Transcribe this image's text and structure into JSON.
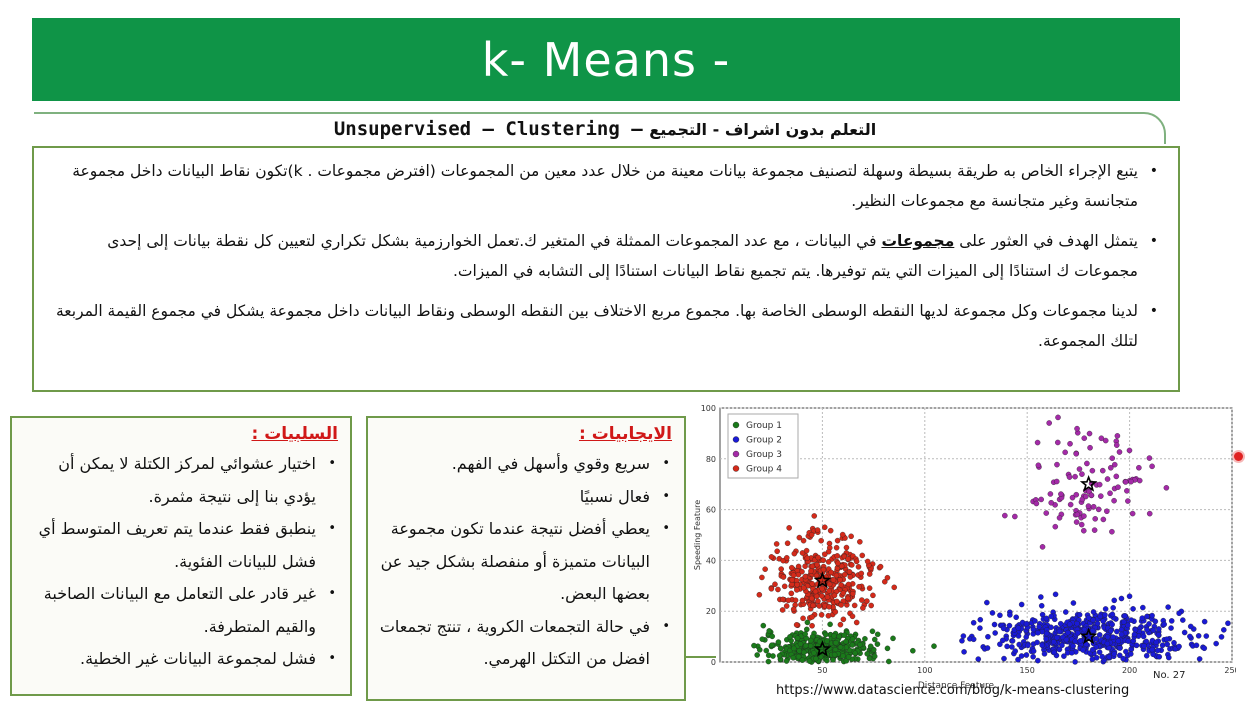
{
  "slide": {
    "title": "k- Means -",
    "subtitle_en": "Unsupervised – Clustering –",
    "subtitle_ar": "التعلم بدون اشراف -  التجميع",
    "main_points": [
      {
        "text": "يتبع الإجراء الخاص به طريقة بسيطة وسهلة لتصنيف مجموعة بيانات معينة من خلال عدد معين من المجموعات (افترض مجموعات  . k)تكون نقاط البيانات داخل مجموعة متجانسة وغير متجانسة مع مجموعات النظير."
      },
      {
        "pre": "يتمثل الهدف في العثور على ",
        "emph": "مجموعات",
        "post": " في البيانات ، مع عدد المجموعات الممثلة في المتغير ك.تعمل الخوارزمية بشكل تكراري لتعيين كل نقطة بيانات إلى إحدى مجموعات ك استنادًا إلى الميزات التي يتم توفيرها. يتم تجميع نقاط البيانات استنادًا إلى التشابه في الميزات."
      },
      {
        "text": "لدينا مجموعات وكل مجموعة لديها النقطه الوسطى الخاصة بها. مجموع مربع الاختلاف بين النقطه الوسطى ونقاط البيانات داخل مجموعة يشكل في مجموع القيمة المربعة لتلك المجموعة."
      }
    ],
    "cons": {
      "title": "السلبيات :",
      "items": [
        "اختيار عشوائي لمركز الكتلة لا يمكن أن يؤدي بنا إلى نتيجة مثمرة.",
        "ينطبق فقط عندما يتم تعريف المتوسط أي فشل للبيانات الفئوية.",
        "غير قادر على التعامل مع البيانات الصاخبة والقيم المتطرفة.",
        "فشل لمجموعة البيانات غير الخطية."
      ]
    },
    "pros": {
      "title": "الايجابيات :",
      "items": [
        "سريع وقوي وأسهل في الفهم.",
        "فعال نسبيًا",
        "يعطي أفضل نتيجة عندما تكون مجموعة البيانات متميزة أو منفصلة بشكل جيد عن بعضها البعض.",
        "في حالة التجمعات الكروية ، تنتج تجمعات افضل من التكتل الهرمي."
      ]
    },
    "source_url": "https://www.datascience.com/blog/k-means-clustering",
    "page_number": "No. 27"
  },
  "chart_data": {
    "type": "scatter",
    "xlabel": "Distance Feature",
    "ylabel": "Speeding Feature",
    "xlim": [
      0,
      250
    ],
    "ylim": [
      0,
      100
    ],
    "xticks": [
      50,
      100,
      150,
      200,
      250
    ],
    "yticks": [
      0,
      20,
      40,
      60,
      80,
      100
    ],
    "grid": true,
    "legend_position": "top-left",
    "series": [
      {
        "name": "Group 1",
        "color": "#1a7a1a",
        "centroid": [
          50,
          5
        ],
        "spread": [
          14,
          3.2
        ],
        "y_range": [
          0,
          20
        ],
        "count": 420
      },
      {
        "name": "Group 2",
        "color": "#1a1ad6",
        "centroid": [
          180,
          10
        ],
        "spread": [
          25,
          5.5
        ],
        "y_range": [
          0,
          40
        ],
        "count": 560
      },
      {
        "name": "Group 3",
        "color": "#a42aa8",
        "centroid": [
          180,
          70
        ],
        "spread": [
          14,
          11
        ],
        "y_range": [
          45,
          100
        ],
        "count": 110
      },
      {
        "name": "Group 4",
        "color": "#d42a1a",
        "centroid": [
          50,
          32
        ],
        "spread": [
          12,
          9
        ],
        "y_range": [
          14,
          64
        ],
        "count": 360
      }
    ]
  }
}
